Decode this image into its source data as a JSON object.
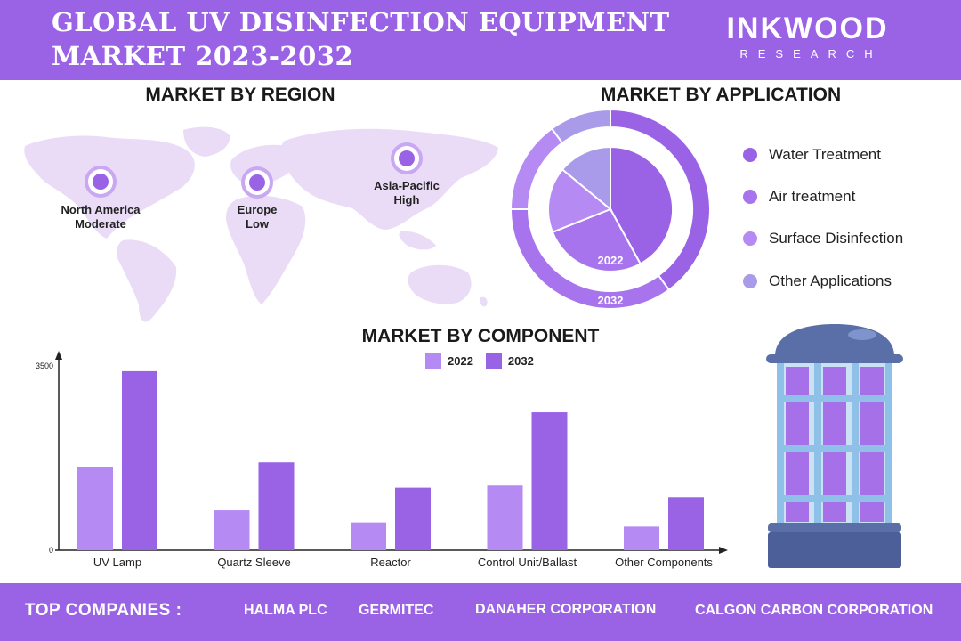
{
  "header": {
    "title_line1": "GLOBAL UV DISINFECTION EQUIPMENT",
    "title_line2": "MARKET 2023-2032",
    "brand_name": "INKWOOD",
    "brand_sub": "RESEARCH"
  },
  "region": {
    "title": "MARKET BY REGION",
    "markers": [
      {
        "name": "North America",
        "level": "Moderate"
      },
      {
        "name": "Europe",
        "level": "Low"
      },
      {
        "name": "Asia-Pacific",
        "level": "High"
      }
    ]
  },
  "application": {
    "title": "MARKET BY APPLICATION",
    "ring_labels": {
      "inner": "2022",
      "outer": "2032"
    },
    "legend": [
      {
        "label": "Water Treatment",
        "color": "#9a63e6"
      },
      {
        "label": "Air treatment",
        "color": "#a874ee"
      },
      {
        "label": "Surface Disinfection",
        "color": "#b68af3"
      },
      {
        "label": "Other Applications",
        "color": "#a99be9"
      }
    ]
  },
  "chart_data": [
    {
      "type": "pie",
      "title": "MARKET BY APPLICATION",
      "categories": [
        "Water Treatment",
        "Air treatment",
        "Surface Disinfection",
        "Other Applications"
      ],
      "series": [
        {
          "name": "2022",
          "values": [
            42,
            27,
            17,
            14
          ]
        },
        {
          "name": "2032",
          "values": [
            40,
            35,
            15,
            10
          ]
        }
      ]
    },
    {
      "type": "bar",
      "title": "MARKET BY COMPONENT",
      "categories": [
        "UV Lamp",
        "Quartz Sleeve",
        "Reactor",
        "Control Unit/Ballast",
        "Other Components"
      ],
      "series": [
        {
          "name": "2022",
          "values": [
            1580,
            760,
            530,
            1230,
            450
          ],
          "color": "#b68af3"
        },
        {
          "name": "2032",
          "values": [
            3400,
            1670,
            1190,
            2620,
            1010
          ],
          "color": "#9a63e6"
        }
      ],
      "yticks": [
        0,
        3500
      ],
      "ylim": [
        0,
        3500
      ],
      "legend": "top-center"
    }
  ],
  "component": {
    "title": "MARKET BY COMPONENT"
  },
  "footer": {
    "label": "TOP COMPANIES :",
    "companies": [
      "HALMA PLC",
      "GERMITEC",
      "DANAHER CORPORATION",
      "CALGON CARBON CORPORATION"
    ]
  }
}
